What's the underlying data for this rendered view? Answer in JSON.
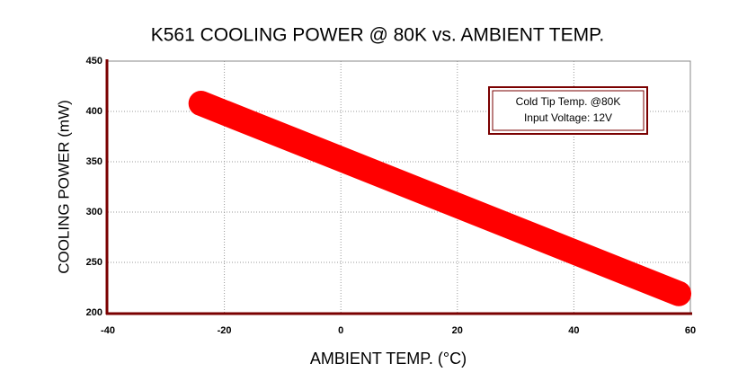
{
  "chart_data": {
    "type": "line",
    "title": "K561 COOLING POWER @ 80K vs. AMBIENT TEMP.",
    "x_label": "AMBIENT TEMP. (°C)",
    "y_label": "COOLING POWER (mW)",
    "annotations": [
      "Cold Tip Temp. @80K",
      "Input Voltage: 12V"
    ],
    "x": [
      -24,
      58
    ],
    "values": [
      408,
      219
    ],
    "color": "#ff0000",
    "xlim": [
      -40,
      60
    ],
    "xticks": [
      -40,
      -20,
      0,
      20,
      40,
      60
    ],
    "ylim": [
      200,
      450
    ],
    "yticks": [
      200,
      250,
      300,
      350,
      400,
      450
    ],
    "grid": true
  }
}
